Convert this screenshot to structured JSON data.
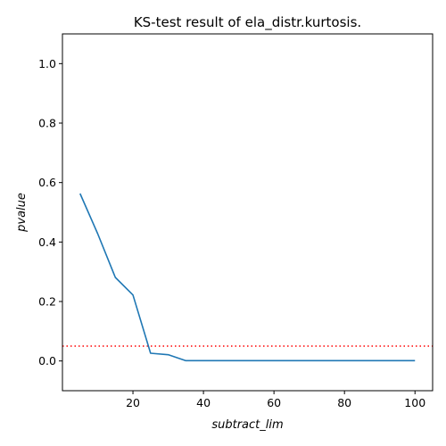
{
  "chart_data": {
    "type": "line",
    "title": "KS-test result of ela_distr.kurtosis.",
    "xlabel": "subtract_lim",
    "ylabel": "pvalue",
    "xlim": [
      0,
      105
    ],
    "ylim": [
      -0.1,
      1.1
    ],
    "xticks": [
      20,
      40,
      60,
      80,
      100
    ],
    "yticks": [
      0.0,
      0.2,
      0.4,
      0.6,
      0.8,
      1.0
    ],
    "grid": false,
    "series": [
      {
        "color": "#1f77b4",
        "x": [
          5,
          10,
          15,
          20,
          25,
          30,
          35,
          40,
          45,
          50,
          55,
          60,
          65,
          70,
          75,
          80,
          85,
          90,
          95,
          100
        ],
        "y": [
          0.563,
          0.428,
          0.281,
          0.222,
          0.026,
          0.021,
          0.001,
          0.001,
          0.001,
          0.001,
          0.001,
          0.001,
          0.001,
          0.001,
          0.001,
          0.001,
          0.001,
          0.001,
          0.001,
          0.001
        ]
      }
    ],
    "reference_line": {
      "y": 0.05,
      "color": "#ff0000",
      "style": "dotted"
    }
  }
}
